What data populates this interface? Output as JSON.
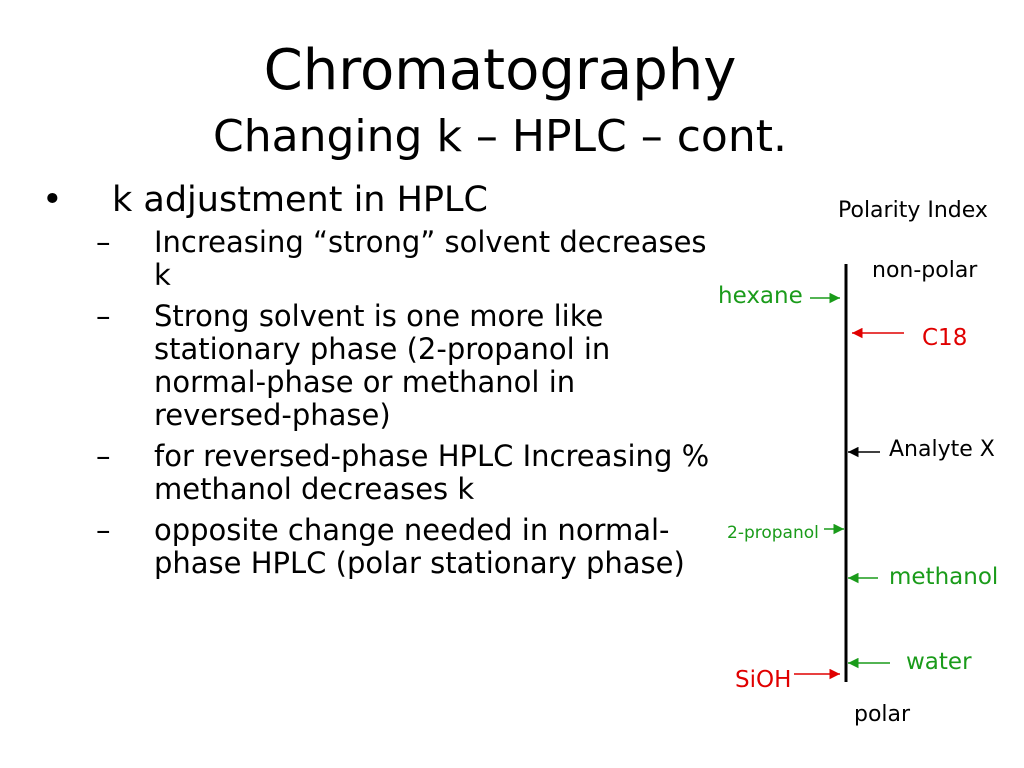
{
  "slide": {
    "title": "Chromatography",
    "subtitle": "Changing k – HPLC – cont."
  },
  "bullets": {
    "main_symbol": "•",
    "main_text": "k adjustment in HPLC",
    "dash_symbol": "–",
    "sub_items": [
      "Increasing “strong” solvent decreases k",
      "Strong solvent is one more like stationary phase (2-propanol in normal-phase or methanol in reversed-phase)",
      "for reversed-phase HPLC Increasing % methanol decreases k",
      "opposite change needed in normal-phase HPLC (polar stationary phase)"
    ]
  },
  "diagram": {
    "heading": "Polarity Index",
    "top_label": "non-polar",
    "bottom_label": "polar",
    "colors": {
      "green": "#1a9b1a",
      "red": "#e00000",
      "black": "#000000"
    },
    "markers": [
      {
        "label": "hexane",
        "side": "left",
        "color": "green"
      },
      {
        "label": "C18",
        "side": "right",
        "color": "red"
      },
      {
        "label": "Analyte X",
        "side": "right",
        "color": "black"
      },
      {
        "label": "2-propanol",
        "side": "left",
        "color": "green"
      },
      {
        "label": "methanol",
        "side": "right",
        "color": "green"
      },
      {
        "label": "water",
        "side": "right",
        "color": "green"
      },
      {
        "label": "SiOH",
        "side": "left",
        "color": "red"
      }
    ]
  }
}
